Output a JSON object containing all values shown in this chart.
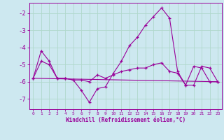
{
  "xlabel": "Windchill (Refroidissement éolien,°C)",
  "background_color": "#cde8f0",
  "grid_color": "#b0d8cc",
  "line_color": "#990099",
  "series1": {
    "x": [
      0,
      1,
      2,
      3,
      4,
      5,
      6,
      7,
      8,
      9,
      10,
      11,
      12,
      13,
      14,
      15,
      16,
      17,
      18,
      19,
      20,
      21,
      22,
      23
    ],
    "y": [
      -5.8,
      -4.2,
      -4.8,
      -5.8,
      -5.8,
      -5.9,
      -6.5,
      -7.2,
      -6.4,
      -6.3,
      -5.5,
      -4.8,
      -3.9,
      -3.4,
      -2.7,
      -2.2,
      -1.7,
      -2.3,
      -5.4,
      -6.2,
      -5.1,
      -5.2,
      -6.0,
      -6.0
    ]
  },
  "series2": {
    "x": [
      0,
      1,
      2,
      3,
      4,
      5,
      6,
      7,
      8,
      9,
      10,
      11,
      12,
      13,
      14,
      15,
      16,
      17,
      18,
      19,
      20,
      21,
      22,
      23
    ],
    "y": [
      -5.8,
      -4.8,
      -5.0,
      -5.8,
      -5.8,
      -5.9,
      -5.9,
      -6.0,
      -5.6,
      -5.8,
      -5.6,
      -5.4,
      -5.3,
      -5.2,
      -5.2,
      -5.0,
      -4.9,
      -5.4,
      -5.5,
      -6.2,
      -6.2,
      -5.1,
      -5.2,
      -6.0
    ]
  },
  "series3": {
    "x": [
      0,
      23
    ],
    "y": [
      -5.8,
      -6.0
    ]
  },
  "ylim": [
    -7.6,
    -1.4
  ],
  "xlim": [
    -0.5,
    23.5
  ],
  "yticks": [
    -7,
    -6,
    -5,
    -4,
    -3,
    -2
  ],
  "xticks": [
    0,
    1,
    2,
    3,
    4,
    5,
    6,
    7,
    8,
    9,
    10,
    11,
    12,
    13,
    14,
    15,
    16,
    17,
    18,
    19,
    20,
    21,
    22,
    23
  ],
  "xlabel_fontsize": 5.5,
  "ytick_fontsize": 6.5,
  "xtick_fontsize": 4.5
}
